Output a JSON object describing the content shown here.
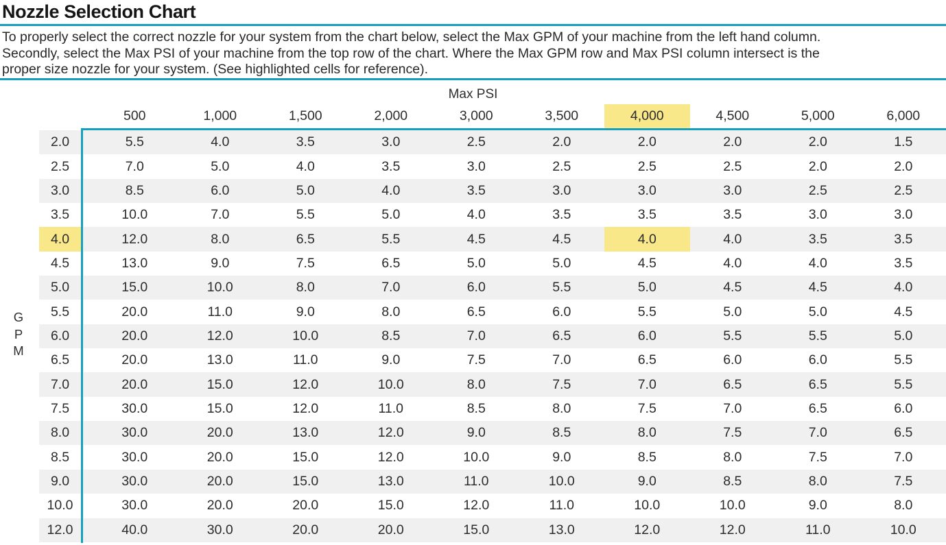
{
  "page": {
    "title": "Nozzle Selection Chart"
  },
  "intro": {
    "lines": [
      "To properly select the correct nozzle for your system from the chart below, select the Max GPM of your machine from the left hand column.",
      "Secondly, select the Max PSI of your machine from the top row of the chart. Where the Max GPM row and Max PSI column intersect is the",
      "proper size nozzle for your system. (See highlighted cells for reference)."
    ]
  },
  "table_labels": {
    "psi_axis": "Max PSI",
    "gpm_axis": "GPM"
  },
  "colors": {
    "accent_teal": "#14A0BD",
    "highlight_yellow": "#F8E88A",
    "row_stripe_gray": "#F0F0F0",
    "text_ink": "#2b2b2b"
  },
  "chart_data": {
    "type": "table",
    "title": "Nozzle Selection Chart",
    "xlabel": "Max PSI",
    "ylabel": "GPM",
    "columns_psi": [
      500,
      1000,
      1500,
      2000,
      3000,
      3500,
      4000,
      4500,
      5000,
      6000
    ],
    "rows_gpm": [
      2.0,
      2.5,
      3.0,
      3.5,
      4.0,
      4.5,
      5.0,
      5.5,
      6.0,
      6.5,
      7.0,
      7.5,
      8.0,
      8.5,
      9.0,
      10.0,
      12.0
    ],
    "values": [
      [
        5.5,
        4.0,
        3.5,
        3.0,
        2.5,
        2.0,
        2.0,
        2.0,
        2.0,
        1.5
      ],
      [
        7.0,
        5.0,
        4.0,
        3.5,
        3.0,
        2.5,
        2.5,
        2.5,
        2.0,
        2.0
      ],
      [
        8.5,
        6.0,
        5.0,
        4.0,
        3.5,
        3.0,
        3.0,
        3.0,
        2.5,
        2.5
      ],
      [
        10.0,
        7.0,
        5.5,
        5.0,
        4.0,
        3.5,
        3.5,
        3.5,
        3.0,
        3.0
      ],
      [
        12.0,
        8.0,
        6.5,
        5.5,
        4.5,
        4.5,
        4.0,
        4.0,
        3.5,
        3.5
      ],
      [
        13.0,
        9.0,
        7.5,
        6.5,
        5.0,
        5.0,
        4.5,
        4.0,
        4.0,
        3.5
      ],
      [
        15.0,
        10.0,
        8.0,
        7.0,
        6.0,
        5.5,
        5.0,
        4.5,
        4.5,
        4.0
      ],
      [
        20.0,
        11.0,
        9.0,
        8.0,
        6.5,
        6.0,
        5.5,
        5.0,
        5.0,
        4.5
      ],
      [
        20.0,
        12.0,
        10.0,
        8.5,
        7.0,
        6.5,
        6.0,
        5.5,
        5.5,
        5.0
      ],
      [
        20.0,
        13.0,
        11.0,
        9.0,
        7.5,
        7.0,
        6.5,
        6.0,
        6.0,
        5.5
      ],
      [
        20.0,
        15.0,
        12.0,
        10.0,
        8.0,
        7.5,
        7.0,
        6.5,
        6.5,
        5.5
      ],
      [
        30.0,
        15.0,
        12.0,
        11.0,
        8.5,
        8.0,
        7.5,
        7.0,
        6.5,
        6.0
      ],
      [
        30.0,
        20.0,
        13.0,
        12.0,
        9.0,
        8.5,
        8.0,
        7.5,
        7.0,
        6.5
      ],
      [
        30.0,
        20.0,
        15.0,
        12.0,
        10.0,
        9.0,
        8.5,
        8.0,
        7.5,
        7.0
      ],
      [
        30.0,
        20.0,
        15.0,
        13.0,
        11.0,
        10.0,
        9.0,
        8.5,
        8.0,
        7.5
      ],
      [
        30.0,
        20.0,
        20.0,
        15.0,
        12.0,
        11.0,
        10.0,
        10.0,
        9.0,
        8.0
      ],
      [
        40.0,
        30.0,
        20.0,
        20.0,
        15.0,
        13.0,
        12.0,
        12.0,
        11.0,
        10.0
      ]
    ],
    "highlight": {
      "row_index": 4,
      "col_index": 6,
      "gpm": 4.0,
      "psi": 4000,
      "value": 4.0
    },
    "layout_hints": {
      "row_striping": "alternating gray starting with first row",
      "grid": "off"
    }
  }
}
